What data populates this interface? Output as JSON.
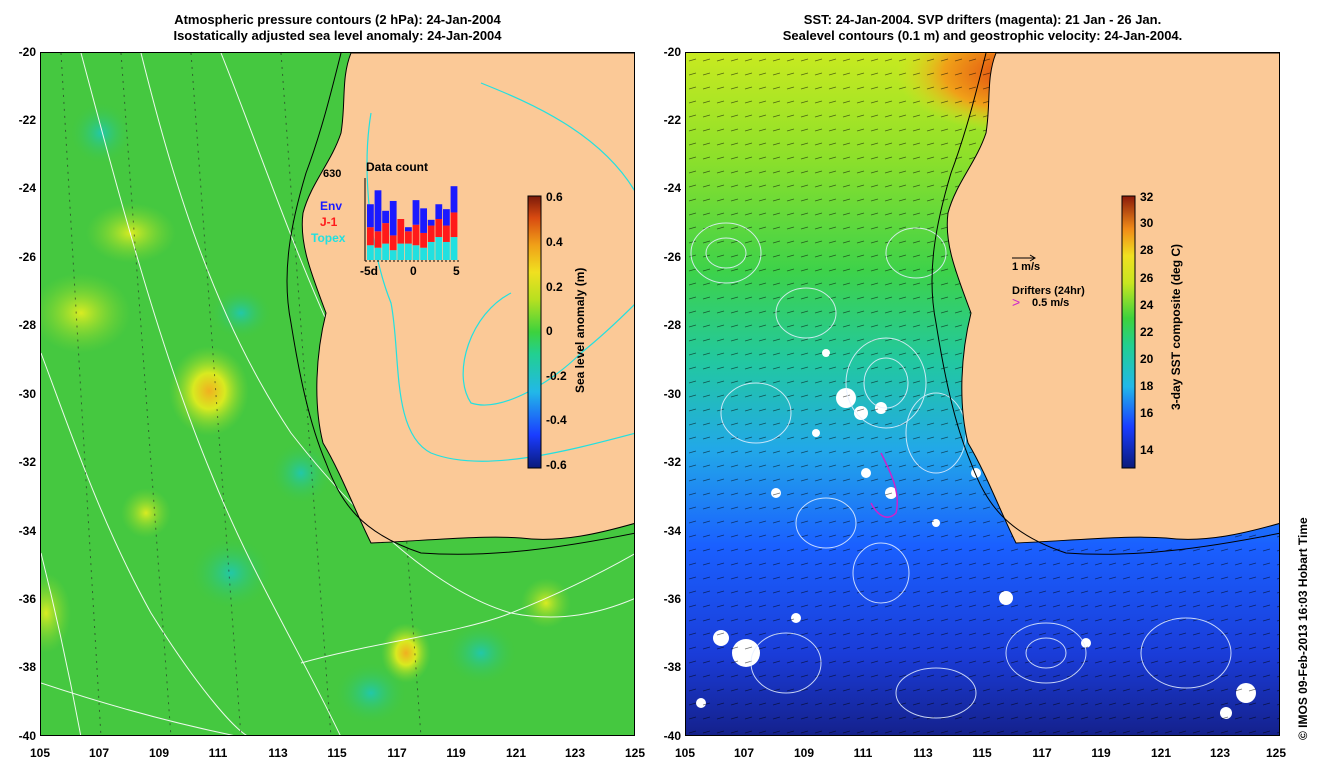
{
  "left": {
    "title_line1": "Atmospheric pressure contours (2 hPa): 24-Jan-2004",
    "title_line2": "Isostatically adjusted sea level anomaly: 24-Jan-2004",
    "colorbar_label": "Sea level anomaly (m)",
    "colorbar_ticks": [
      "0.6",
      "0.4",
      "0.2",
      "0",
      "-0.2",
      "-0.4",
      "-0.6"
    ],
    "inset": {
      "title": "Data count",
      "max_label": "630",
      "legend": [
        {
          "label": "Env",
          "color": "#1a1aff"
        },
        {
          "label": "J-1",
          "color": "#ff1a1a"
        },
        {
          "label": "Topex",
          "color": "#22e0e0"
        }
      ],
      "x_ticks": [
        "-5d",
        "0",
        "5"
      ],
      "bars": [
        {
          "topex": 0.18,
          "j1": 0.22,
          "env": 0.28
        },
        {
          "topex": 0.15,
          "j1": 0.2,
          "env": 0.5
        },
        {
          "topex": 0.2,
          "j1": 0.25,
          "env": 0.15
        },
        {
          "topex": 0.12,
          "j1": 0.18,
          "env": 0.42
        },
        {
          "topex": 0.2,
          "j1": 0.3,
          "env": 0.0
        },
        {
          "topex": 0.2,
          "j1": 0.15,
          "env": 0.05
        },
        {
          "topex": 0.18,
          "j1": 0.25,
          "env": 0.3
        },
        {
          "topex": 0.15,
          "j1": 0.18,
          "env": 0.3
        },
        {
          "topex": 0.22,
          "j1": 0.2,
          "env": 0.07
        },
        {
          "topex": 0.28,
          "j1": 0.22,
          "env": 0.18
        },
        {
          "topex": 0.22,
          "j1": 0.2,
          "env": 0.2
        },
        {
          "topex": 0.28,
          "j1": 0.3,
          "env": 0.32
        }
      ]
    }
  },
  "right": {
    "title_line1": "SST: 24-Jan-2004. SVP drifters (magenta): 21 Jan - 26 Jan.",
    "title_line2": "Sealevel contours (0.1 m) and geostrophic velocity: 24-Jan-2004.",
    "colorbar_label": "3-day SST composite (deg C)",
    "colorbar_ticks": [
      "32",
      "30",
      "28",
      "26",
      "24",
      "22",
      "20",
      "18",
      "16",
      "14"
    ],
    "velocity_scale": "1 m/s",
    "drifters_label": "Drifters (24hr)",
    "drifter_scale": "0.5 m/s"
  },
  "axes": {
    "y_ticks": [
      "-20",
      "-22",
      "-24",
      "-26",
      "-28",
      "-30",
      "-32",
      "-34",
      "-36",
      "-38",
      "-40"
    ],
    "x_ticks": [
      "105",
      "107",
      "109",
      "111",
      "113",
      "115",
      "117",
      "119",
      "121",
      "123",
      "125"
    ]
  },
  "credit": "© IMOS 09-Feb-2013 16:03 Hobart Time",
  "colors": {
    "land": "#fbc997",
    "sla_zero": "#3dd23d",
    "sst_cool": "#1a3dff",
    "sst_warm": "#b8e01f"
  }
}
